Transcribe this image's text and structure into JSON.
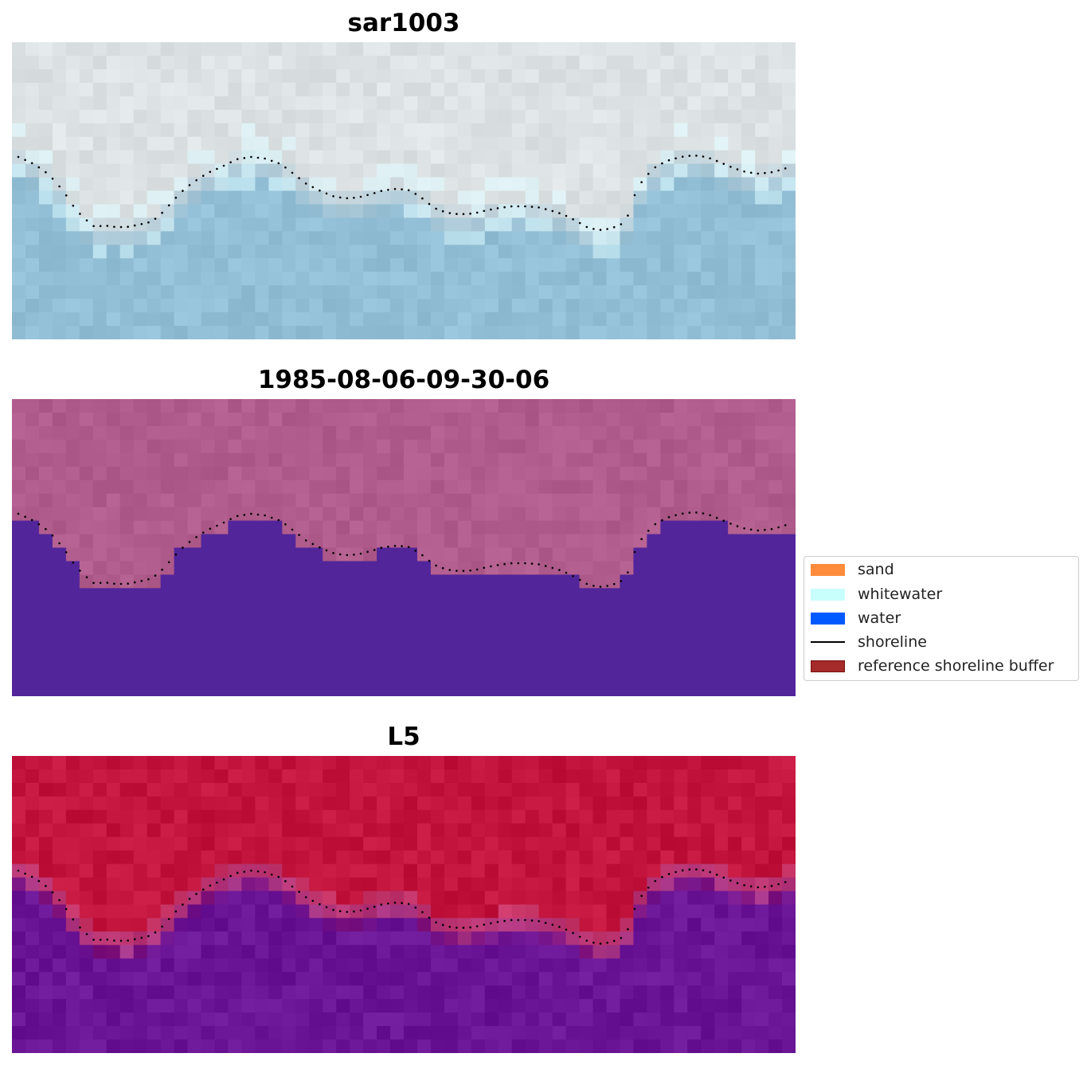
{
  "panels": [
    {
      "title": "sar1003",
      "style": "rgb"
    },
    {
      "title": "1985-08-06-09-30-06",
      "style": "classified"
    },
    {
      "title": "L5",
      "style": "index"
    }
  ],
  "legend": {
    "items": [
      {
        "label": "sand",
        "color": "#ff8c3a",
        "kind": "patch"
      },
      {
        "label": "whitewater",
        "color": "#c8fffc",
        "kind": "patch"
      },
      {
        "label": "water",
        "color": "#005aff",
        "kind": "patch"
      },
      {
        "label": "shoreline",
        "color": "#000000",
        "kind": "line"
      },
      {
        "label": "reference shoreline buffer",
        "color": "#a52a2a",
        "kind": "patch"
      }
    ]
  },
  "colors": {
    "sar_land": "#dde3e5",
    "sar_water": "#93bfd6",
    "class_land": "#b05c8c",
    "class_water": "#52259a",
    "index_land": "#c2143c",
    "index_water": "#6a1496"
  }
}
